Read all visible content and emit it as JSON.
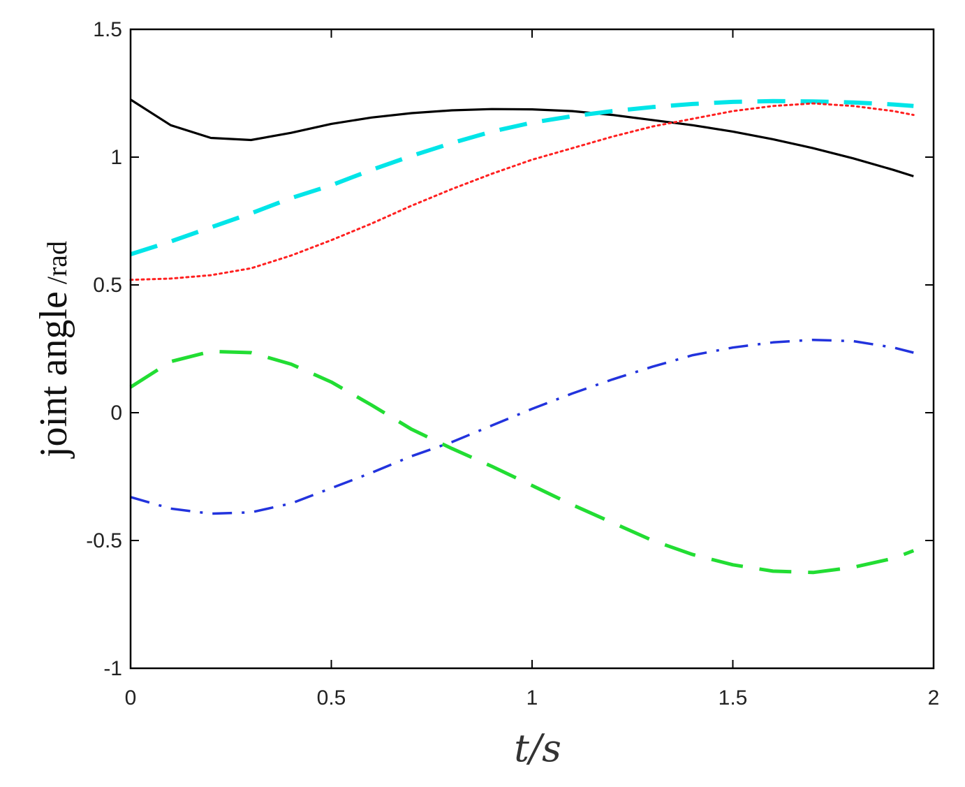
{
  "chart_data": {
    "type": "line",
    "title": "",
    "xlabel": "t/s",
    "ylabel_main": "joint angle",
    "ylabel_unit": "/rad",
    "xlim": [
      0,
      2
    ],
    "ylim": [
      -1,
      1.5
    ],
    "xticks": [
      0,
      0.5,
      1,
      1.5,
      2
    ],
    "xtick_labels": [
      "0",
      "0.5",
      "1",
      "1.5",
      "2"
    ],
    "yticks": [
      -1,
      -0.5,
      0,
      0.5,
      1,
      1.5
    ],
    "ytick_labels": [
      "-1",
      "-0.5",
      "0",
      "0.5",
      "1",
      "1.5"
    ],
    "grid": false,
    "legend": "none",
    "x": [
      0,
      0.1,
      0.2,
      0.3,
      0.4,
      0.5,
      0.6,
      0.7,
      0.8,
      0.9,
      1.0,
      1.1,
      1.2,
      1.3,
      1.4,
      1.5,
      1.6,
      1.7,
      1.8,
      1.9,
      1.95
    ],
    "series": [
      {
        "style": "solid",
        "color": "#000000",
        "values": [
          1.225,
          1.125,
          1.075,
          1.067,
          1.095,
          1.13,
          1.155,
          1.172,
          1.183,
          1.188,
          1.187,
          1.18,
          1.165,
          1.145,
          1.125,
          1.1,
          1.07,
          1.035,
          0.995,
          0.95,
          0.925
        ]
      },
      {
        "style": "dashed",
        "color": "#00e5e8",
        "values": [
          0.62,
          0.67,
          0.725,
          0.78,
          0.84,
          0.89,
          0.95,
          1.005,
          1.055,
          1.1,
          1.135,
          1.16,
          1.18,
          1.196,
          1.208,
          1.216,
          1.219,
          1.218,
          1.214,
          1.206,
          1.2
        ]
      },
      {
        "style": "dotted",
        "color": "#ff2020",
        "values": [
          0.52,
          0.525,
          0.538,
          0.565,
          0.615,
          0.675,
          0.74,
          0.81,
          0.875,
          0.935,
          0.99,
          1.035,
          1.08,
          1.12,
          1.15,
          1.18,
          1.2,
          1.21,
          1.2,
          1.18,
          1.165
        ]
      },
      {
        "style": "long-dash",
        "color": "#22dd33",
        "values": [
          0.1,
          0.2,
          0.24,
          0.235,
          0.19,
          0.12,
          0.03,
          -0.065,
          -0.14,
          -0.21,
          -0.285,
          -0.36,
          -0.43,
          -0.5,
          -0.555,
          -0.595,
          -0.62,
          -0.625,
          -0.605,
          -0.57,
          -0.54
        ]
      },
      {
        "style": "dash-dot",
        "color": "#2233dd",
        "values": [
          -0.33,
          -0.375,
          -0.395,
          -0.39,
          -0.355,
          -0.295,
          -0.235,
          -0.17,
          -0.115,
          -0.05,
          0.015,
          0.075,
          0.13,
          0.18,
          0.225,
          0.255,
          0.275,
          0.285,
          0.28,
          0.255,
          0.235
        ]
      }
    ]
  }
}
